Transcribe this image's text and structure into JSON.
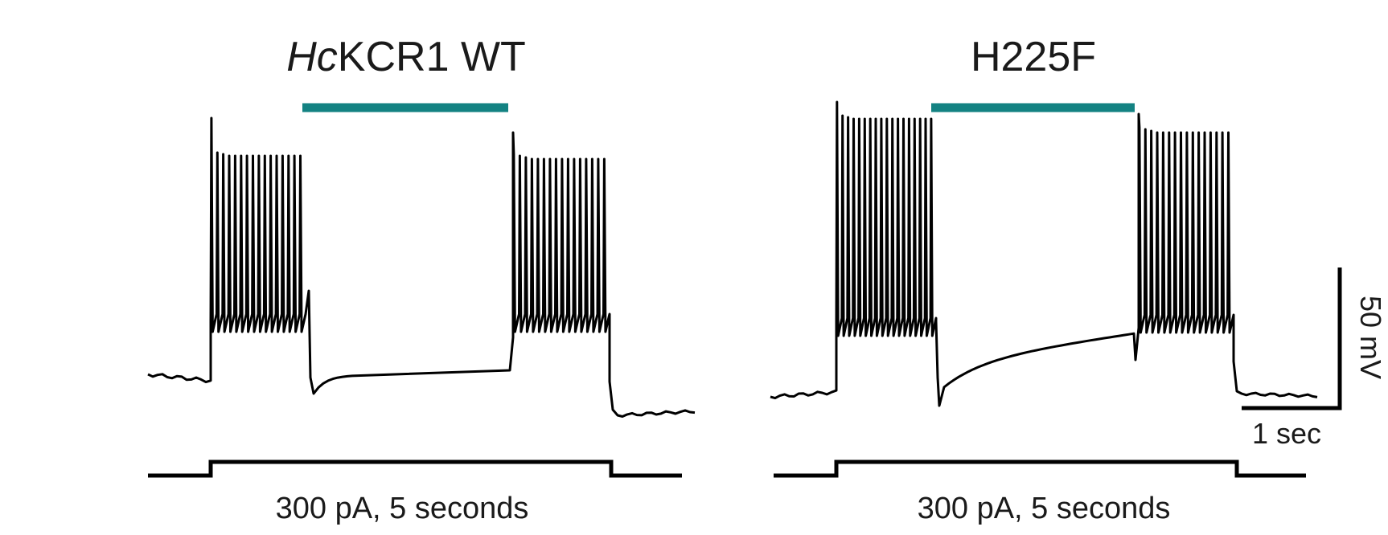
{
  "panels": [
    {
      "title_italic": "Hc",
      "title_rest": "KCR1 WT",
      "caption": "300 pA, 5 seconds"
    },
    {
      "title_italic": "",
      "title_rest": "H225F",
      "caption": "300 pA, 5 seconds"
    }
  ],
  "scale_bar": {
    "vertical_label": "50 mV",
    "horizontal_label": "1 sec"
  },
  "colors": {
    "light_bar": "#138282",
    "trace": "#000000"
  }
}
